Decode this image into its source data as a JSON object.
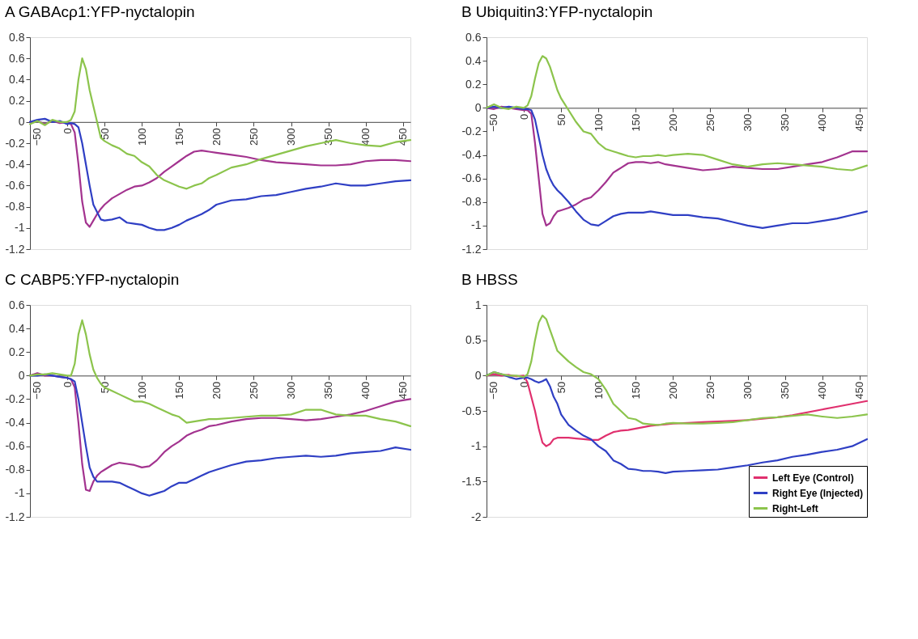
{
  "chart_data": [
    {
      "type": "line",
      "title": "A GABAcρ1:YFP-nyctalopin",
      "xlim": [
        -50,
        460
      ],
      "xticks": [
        -50,
        0,
        50,
        100,
        150,
        200,
        250,
        300,
        350,
        400,
        450
      ],
      "ylim": [
        -1.2,
        0.8
      ],
      "yticks": [
        -1.2,
        -1,
        -0.8,
        -0.6,
        -0.4,
        -0.2,
        0,
        0.2,
        0.4,
        0.6,
        0.8
      ],
      "grid": false,
      "legend": false,
      "x": [
        -50,
        -40,
        -30,
        -20,
        -10,
        0,
        5,
        10,
        15,
        20,
        25,
        30,
        35,
        40,
        45,
        50,
        60,
        70,
        80,
        90,
        100,
        110,
        120,
        130,
        140,
        150,
        160,
        170,
        180,
        190,
        200,
        220,
        240,
        260,
        280,
        300,
        320,
        340,
        360,
        380,
        400,
        420,
        440,
        460
      ],
      "series": [
        {
          "color": "#a3338f",
          "values": [
            0,
            0.01,
            -0.02,
            0.01,
            -0.01,
            0,
            -0.02,
            -0.1,
            -0.4,
            -0.75,
            -0.95,
            -0.99,
            -0.93,
            -0.87,
            -0.82,
            -0.78,
            -0.72,
            -0.68,
            -0.64,
            -0.61,
            -0.6,
            -0.57,
            -0.53,
            -0.47,
            -0.42,
            -0.37,
            -0.32,
            -0.28,
            -0.27,
            -0.28,
            -0.29,
            -0.31,
            -0.33,
            -0.36,
            -0.38,
            -0.39,
            -0.4,
            -0.41,
            -0.41,
            -0.4,
            -0.37,
            -0.36,
            -0.36,
            -0.37
          ]
        },
        {
          "color": "#2f3fc4",
          "values": [
            0,
            0.02,
            0.03,
            0,
            0.01,
            -0.02,
            -0.01,
            -0.02,
            -0.05,
            -0.2,
            -0.4,
            -0.6,
            -0.78,
            -0.85,
            -0.92,
            -0.93,
            -0.92,
            -0.9,
            -0.95,
            -0.96,
            -0.97,
            -1.0,
            -1.02,
            -1.02,
            -1.0,
            -0.97,
            -0.93,
            -0.9,
            -0.87,
            -0.83,
            -0.78,
            -0.74,
            -0.73,
            -0.7,
            -0.69,
            -0.66,
            -0.63,
            -0.61,
            -0.58,
            -0.6,
            -0.6,
            -0.58,
            -0.56,
            -0.55
          ]
        },
        {
          "color": "#8cc44c",
          "values": [
            -0.02,
            0.01,
            -0.03,
            0.02,
            0,
            0,
            0.02,
            0.1,
            0.4,
            0.6,
            0.5,
            0.3,
            0.15,
            0.0,
            -0.15,
            -0.18,
            -0.22,
            -0.25,
            -0.3,
            -0.32,
            -0.38,
            -0.42,
            -0.5,
            -0.55,
            -0.58,
            -0.61,
            -0.63,
            -0.6,
            -0.58,
            -0.53,
            -0.5,
            -0.43,
            -0.4,
            -0.35,
            -0.31,
            -0.27,
            -0.23,
            -0.2,
            -0.17,
            -0.2,
            -0.22,
            -0.23,
            -0.19,
            -0.17
          ]
        }
      ]
    },
    {
      "type": "line",
      "title": "B Ubiquitin3:YFP-nyctalopin",
      "xlim": [
        -50,
        460
      ],
      "xticks": [
        -50,
        0,
        50,
        100,
        150,
        200,
        250,
        300,
        350,
        400,
        450
      ],
      "ylim": [
        -1.2,
        0.6
      ],
      "yticks": [
        -1.2,
        -1,
        -0.8,
        -0.6,
        -0.4,
        -0.2,
        0,
        0.2,
        0.4,
        0.6
      ],
      "grid": false,
      "legend": false,
      "x": [
        -50,
        -40,
        -30,
        -20,
        -10,
        0,
        5,
        10,
        15,
        20,
        25,
        30,
        35,
        40,
        45,
        50,
        60,
        70,
        80,
        90,
        100,
        110,
        120,
        130,
        140,
        150,
        160,
        170,
        180,
        190,
        200,
        220,
        240,
        260,
        280,
        300,
        320,
        340,
        360,
        380,
        400,
        420,
        440,
        460
      ],
      "series": [
        {
          "color": "#a3338f",
          "values": [
            0,
            -0.01,
            0.01,
            0,
            -0.01,
            -0.02,
            -0.02,
            -0.05,
            -0.3,
            -0.6,
            -0.9,
            -1.0,
            -0.98,
            -0.92,
            -0.88,
            -0.87,
            -0.85,
            -0.82,
            -0.78,
            -0.76,
            -0.7,
            -0.63,
            -0.55,
            -0.51,
            -0.47,
            -0.46,
            -0.46,
            -0.47,
            -0.46,
            -0.48,
            -0.49,
            -0.51,
            -0.53,
            -0.52,
            -0.5,
            -0.51,
            -0.52,
            -0.52,
            -0.5,
            -0.48,
            -0.46,
            -0.42,
            -0.37,
            -0.37
          ]
        },
        {
          "color": "#2f3fc4",
          "values": [
            0,
            0.01,
            0,
            0.01,
            0,
            -0.01,
            -0.01,
            -0.02,
            -0.1,
            -0.25,
            -0.4,
            -0.52,
            -0.6,
            -0.66,
            -0.7,
            -0.73,
            -0.8,
            -0.88,
            -0.95,
            -0.99,
            -1.0,
            -0.96,
            -0.92,
            -0.9,
            -0.89,
            -0.89,
            -0.89,
            -0.88,
            -0.89,
            -0.9,
            -0.91,
            -0.91,
            -0.93,
            -0.94,
            -0.97,
            -1.0,
            -1.02,
            -1.0,
            -0.98,
            -0.98,
            -0.96,
            -0.94,
            -0.91,
            -0.88
          ]
        },
        {
          "color": "#8cc44c",
          "values": [
            0,
            0.03,
            0,
            -0.01,
            0.01,
            0,
            0.02,
            0.1,
            0.25,
            0.38,
            0.44,
            0.42,
            0.35,
            0.25,
            0.15,
            0.08,
            -0.02,
            -0.12,
            -0.2,
            -0.22,
            -0.3,
            -0.35,
            -0.37,
            -0.39,
            -0.41,
            -0.42,
            -0.41,
            -0.41,
            -0.4,
            -0.41,
            -0.4,
            -0.39,
            -0.4,
            -0.44,
            -0.48,
            -0.5,
            -0.48,
            -0.47,
            -0.48,
            -0.49,
            -0.5,
            -0.52,
            -0.53,
            -0.49
          ]
        }
      ]
    },
    {
      "type": "line",
      "title": "C CABP5:YFP-nyctalopin",
      "xlim": [
        -50,
        460
      ],
      "xticks": [
        -50,
        0,
        50,
        100,
        150,
        200,
        250,
        300,
        350,
        400,
        450
      ],
      "ylim": [
        -1.2,
        0.6
      ],
      "yticks": [
        -1.2,
        -1,
        -0.8,
        -0.6,
        -0.4,
        -0.2,
        0,
        0.2,
        0.4,
        0.6
      ],
      "grid": false,
      "legend": false,
      "x": [
        -50,
        -40,
        -30,
        -20,
        -10,
        0,
        5,
        10,
        15,
        20,
        25,
        30,
        35,
        40,
        45,
        50,
        60,
        70,
        80,
        90,
        100,
        110,
        120,
        130,
        140,
        150,
        160,
        170,
        180,
        190,
        200,
        220,
        240,
        260,
        280,
        300,
        320,
        340,
        360,
        380,
        400,
        420,
        440,
        460
      ],
      "series": [
        {
          "color": "#a3338f",
          "values": [
            0,
            0.02,
            0,
            0,
            -0.01,
            -0.02,
            -0.03,
            -0.1,
            -0.4,
            -0.75,
            -0.97,
            -0.98,
            -0.9,
            -0.85,
            -0.82,
            -0.8,
            -0.76,
            -0.74,
            -0.75,
            -0.76,
            -0.78,
            -0.77,
            -0.72,
            -0.65,
            -0.6,
            -0.56,
            -0.51,
            -0.48,
            -0.46,
            -0.43,
            -0.42,
            -0.39,
            -0.37,
            -0.36,
            -0.36,
            -0.37,
            -0.38,
            -0.37,
            -0.35,
            -0.33,
            -0.3,
            -0.26,
            -0.22,
            -0.2
          ]
        },
        {
          "color": "#2f3fc4",
          "values": [
            0,
            0,
            0.01,
            0,
            -0.01,
            -0.02,
            -0.03,
            -0.05,
            -0.2,
            -0.4,
            -0.6,
            -0.78,
            -0.86,
            -0.9,
            -0.9,
            -0.9,
            -0.9,
            -0.91,
            -0.94,
            -0.97,
            -1.0,
            -1.02,
            -1.0,
            -0.98,
            -0.94,
            -0.91,
            -0.91,
            -0.88,
            -0.85,
            -0.82,
            -0.8,
            -0.76,
            -0.73,
            -0.72,
            -0.7,
            -0.69,
            -0.68,
            -0.69,
            -0.68,
            -0.66,
            -0.65,
            -0.64,
            -0.61,
            -0.63
          ]
        },
        {
          "color": "#8cc44c",
          "values": [
            0,
            0.01,
            0.01,
            0.02,
            0.01,
            0,
            0,
            0.1,
            0.35,
            0.47,
            0.35,
            0.18,
            0.05,
            -0.02,
            -0.07,
            -0.1,
            -0.13,
            -0.16,
            -0.19,
            -0.22,
            -0.22,
            -0.24,
            -0.27,
            -0.3,
            -0.33,
            -0.35,
            -0.4,
            -0.39,
            -0.38,
            -0.37,
            -0.37,
            -0.36,
            -0.35,
            -0.34,
            -0.34,
            -0.33,
            -0.29,
            -0.29,
            -0.33,
            -0.34,
            -0.34,
            -0.37,
            -0.39,
            -0.43
          ]
        }
      ]
    },
    {
      "type": "line",
      "title": "B HBSS",
      "xlim": [
        -50,
        460
      ],
      "xticks": [
        -50,
        0,
        50,
        100,
        150,
        200,
        250,
        300,
        350,
        400,
        450
      ],
      "ylim": [
        -2,
        1
      ],
      "yticks": [
        -2,
        -1.5,
        -1,
        -0.5,
        0,
        0.5,
        1
      ],
      "grid": false,
      "legend": "bottom right",
      "x": [
        -50,
        -40,
        -30,
        -20,
        -10,
        0,
        5,
        10,
        15,
        20,
        25,
        30,
        35,
        40,
        45,
        50,
        60,
        70,
        80,
        90,
        100,
        110,
        120,
        130,
        140,
        150,
        160,
        170,
        180,
        190,
        200,
        220,
        240,
        260,
        280,
        300,
        320,
        340,
        360,
        380,
        400,
        420,
        440,
        460
      ],
      "series": [
        {
          "name": "Left Eye (Control)",
          "color": "#e0306e",
          "values": [
            0,
            0.02,
            0,
            0.01,
            -0.01,
            0,
            -0.1,
            -0.3,
            -0.5,
            -0.75,
            -0.95,
            -1.0,
            -0.97,
            -0.9,
            -0.88,
            -0.88,
            -0.88,
            -0.89,
            -0.9,
            -0.91,
            -0.91,
            -0.85,
            -0.8,
            -0.78,
            -0.77,
            -0.75,
            -0.73,
            -0.71,
            -0.7,
            -0.69,
            -0.68,
            -0.67,
            -0.66,
            -0.65,
            -0.64,
            -0.63,
            -0.61,
            -0.59,
            -0.56,
            -0.52,
            -0.48,
            -0.44,
            -0.4,
            -0.36
          ]
        },
        {
          "name": "Right Eye (Injected)",
          "color": "#2f3fc4",
          "values": [
            0,
            0.05,
            0.02,
            -0.02,
            -0.05,
            -0.03,
            -0.03,
            -0.05,
            -0.08,
            -0.1,
            -0.08,
            -0.05,
            -0.15,
            -0.3,
            -0.4,
            -0.55,
            -0.7,
            -0.78,
            -0.85,
            -0.9,
            -1.0,
            -1.07,
            -1.2,
            -1.25,
            -1.32,
            -1.33,
            -1.35,
            -1.35,
            -1.36,
            -1.38,
            -1.36,
            -1.35,
            -1.34,
            -1.33,
            -1.3,
            -1.27,
            -1.23,
            -1.2,
            -1.15,
            -1.12,
            -1.08,
            -1.05,
            -1.0,
            -0.9
          ]
        },
        {
          "name": "Right-Left",
          "color": "#8cc44c",
          "values": [
            0,
            0.05,
            0.02,
            0,
            0,
            -0.02,
            0.02,
            0.2,
            0.5,
            0.75,
            0.85,
            0.8,
            0.65,
            0.5,
            0.35,
            0.3,
            0.2,
            0.12,
            0.05,
            0.02,
            -0.05,
            -0.2,
            -0.4,
            -0.5,
            -0.6,
            -0.62,
            -0.68,
            -0.69,
            -0.7,
            -0.68,
            -0.67,
            -0.68,
            -0.68,
            -0.67,
            -0.66,
            -0.63,
            -0.6,
            -0.59,
            -0.57,
            -0.55,
            -0.58,
            -0.6,
            -0.58,
            -0.55
          ]
        }
      ]
    }
  ]
}
